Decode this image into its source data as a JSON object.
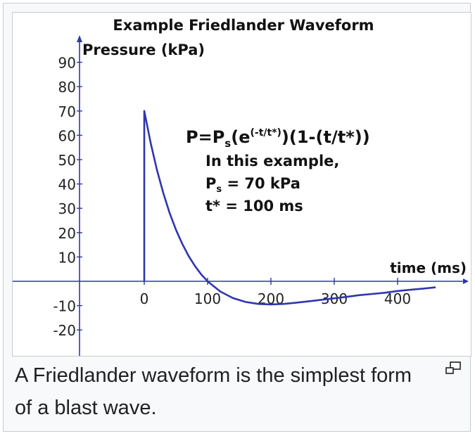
{
  "figure": {
    "caption": "A Friedlander waveform is the simplest form of a blast wave.",
    "magnify_icon": "enlarge-icon"
  },
  "chart_data": {
    "type": "line",
    "title": "Example Friedlander Waveform",
    "ylabel": "Pressure (kPa)",
    "xlabel": "time (ms)",
    "xlim": [
      -210,
      460
    ],
    "ylim": [
      -32,
      92
    ],
    "x_ticks": [
      0,
      100,
      200,
      300,
      400
    ],
    "x_tick_labels": [
      "0",
      "100",
      "200",
      "300",
      "400"
    ],
    "y_ticks": [
      90,
      80,
      70,
      60,
      50,
      40,
      30,
      20,
      10,
      -10,
      -20
    ],
    "y_tick_labels": [
      "90",
      "80",
      "70",
      "60",
      "50",
      "40",
      "30",
      "20",
      "10",
      "-10",
      "-20"
    ],
    "grid": false,
    "line_color": "#2e36b0",
    "axis_color": "#2e36b0",
    "formula_lines": [
      "P=Pₛ(e^(-t/t*))(1-(t/t*))",
      "In this example,",
      "Pₛ = 70 kPa",
      "t* = 100 ms"
    ],
    "formula": {
      "lhs": "P=P",
      "sub": "s",
      "open": "(e",
      "exp": "(-t/t*)",
      "rest": ")(1-(t/t*))"
    },
    "note": "In this example,",
    "param1": {
      "name": "P",
      "sub": "s",
      "value": " = 70 kPa"
    },
    "param2": "t* = 100 ms",
    "series": [
      {
        "values_desc": "Friedlander waveform, Ps = 70 kPa, t* = 100 ms",
        "x": [
          0,
          0,
          10,
          20,
          30,
          40,
          50,
          60,
          70,
          80,
          90,
          100,
          120,
          140,
          160,
          180,
          200,
          220,
          240,
          260,
          280,
          300,
          320,
          340,
          360,
          380,
          400,
          420,
          440,
          460
        ],
        "y": [
          0,
          70,
          57.0,
          45.8,
          36.3,
          28.1,
          21.2,
          15.4,
          10.4,
          6.3,
          2.8,
          0,
          -4.2,
          -6.9,
          -8.5,
          -9.3,
          -9.5,
          -9.3,
          -8.8,
          -8.2,
          -7.6,
          -7.0,
          -6.4,
          -5.7,
          -5.2,
          -4.7,
          -4.0,
          -3.5,
          -3.0,
          -2.5
        ]
      }
    ]
  }
}
